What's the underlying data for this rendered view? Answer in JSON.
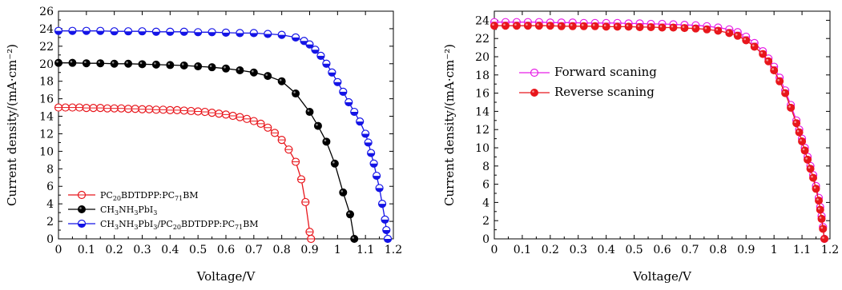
{
  "chart_data": [
    {
      "type": "line",
      "xlabel": "Voltage/V",
      "ylabel": "Current density/(mA·cm⁻²)",
      "xlim": [
        0,
        1.2
      ],
      "ylim": [
        0,
        26
      ],
      "xticks": [
        0,
        0.1,
        0.2,
        0.3,
        0.4,
        0.5,
        0.6,
        0.7,
        0.8,
        0.9,
        1.0,
        1.1,
        1.2
      ],
      "yticks": [
        0,
        2,
        4,
        6,
        8,
        10,
        12,
        14,
        16,
        18,
        20,
        22,
        24,
        26
      ],
      "grid": false,
      "legend_position": "bottom-left",
      "series": [
        {
          "name_parts": [
            [
              "PC",
              ""
            ],
            [
              "20",
              "sub"
            ],
            [
              "BDTDPP:PC",
              ""
            ],
            [
              "71",
              "sub"
            ],
            [
              "BM",
              ""
            ]
          ],
          "color": "#e8161c",
          "marker": "open-circle",
          "x": [
            0,
            0.025,
            0.05,
            0.075,
            0.1,
            0.125,
            0.15,
            0.175,
            0.2,
            0.225,
            0.25,
            0.275,
            0.3,
            0.325,
            0.35,
            0.375,
            0.4,
            0.425,
            0.45,
            0.475,
            0.5,
            0.525,
            0.55,
            0.575,
            0.6,
            0.625,
            0.65,
            0.675,
            0.7,
            0.725,
            0.75,
            0.775,
            0.8,
            0.825,
            0.85,
            0.87,
            0.885,
            0.9,
            0.905
          ],
          "y": [
            15.0,
            15.0,
            15.0,
            15.0,
            14.95,
            14.95,
            14.95,
            14.9,
            14.9,
            14.9,
            14.85,
            14.85,
            14.8,
            14.8,
            14.75,
            14.75,
            14.7,
            14.7,
            14.65,
            14.6,
            14.55,
            14.5,
            14.4,
            14.3,
            14.2,
            14.05,
            13.9,
            13.7,
            13.45,
            13.15,
            12.7,
            12.1,
            11.3,
            10.2,
            8.8,
            6.8,
            4.2,
            0.8,
            0
          ]
        },
        {
          "name_parts": [
            [
              "CH",
              ""
            ],
            [
              "3",
              "sub"
            ],
            [
              "NH",
              ""
            ],
            [
              "3",
              "sub"
            ],
            [
              "PbI",
              ""
            ],
            [
              "3",
              "sub"
            ]
          ],
          "color": "#000000",
          "marker": "filled-circle",
          "x": [
            0,
            0.05,
            0.1,
            0.15,
            0.2,
            0.25,
            0.3,
            0.35,
            0.4,
            0.45,
            0.5,
            0.55,
            0.6,
            0.65,
            0.7,
            0.75,
            0.8,
            0.85,
            0.9,
            0.93,
            0.96,
            0.99,
            1.02,
            1.045,
            1.06
          ],
          "y": [
            20.1,
            20.1,
            20.05,
            20.05,
            20.0,
            20.0,
            19.95,
            19.9,
            19.85,
            19.8,
            19.7,
            19.6,
            19.45,
            19.25,
            19.0,
            18.6,
            18.0,
            16.6,
            14.5,
            12.9,
            11.1,
            8.6,
            5.3,
            2.8,
            0
          ]
        },
        {
          "name_parts": [
            [
              "CH",
              ""
            ],
            [
              "3",
              "sub"
            ],
            [
              "NH",
              ""
            ],
            [
              "3",
              "sub"
            ],
            [
              "PbI",
              ""
            ],
            [
              "3",
              "sub"
            ],
            [
              "/PC",
              ""
            ],
            [
              "20",
              "sub"
            ],
            [
              "BDTDPP:PC",
              ""
            ],
            [
              "71",
              "sub"
            ],
            [
              "BM",
              ""
            ]
          ],
          "color": "#1414e6",
          "marker": "half-filled-circle",
          "x": [
            0,
            0.05,
            0.1,
            0.15,
            0.2,
            0.25,
            0.3,
            0.35,
            0.4,
            0.45,
            0.5,
            0.55,
            0.6,
            0.65,
            0.7,
            0.75,
            0.8,
            0.85,
            0.88,
            0.9,
            0.92,
            0.94,
            0.96,
            0.98,
            1.0,
            1.02,
            1.04,
            1.06,
            1.08,
            1.1,
            1.11,
            1.12,
            1.13,
            1.14,
            1.15,
            1.16,
            1.17,
            1.175,
            1.18
          ],
          "y": [
            23.75,
            23.75,
            23.75,
            23.75,
            23.7,
            23.7,
            23.7,
            23.65,
            23.65,
            23.65,
            23.6,
            23.6,
            23.55,
            23.5,
            23.5,
            23.4,
            23.3,
            23.0,
            22.6,
            22.2,
            21.6,
            20.9,
            20.0,
            19.0,
            17.9,
            16.8,
            15.6,
            14.5,
            13.4,
            12.0,
            11.0,
            9.8,
            8.6,
            7.2,
            5.8,
            4.0,
            2.2,
            1.0,
            0
          ]
        }
      ]
    },
    {
      "type": "line",
      "xlabel": "Voltage/V",
      "ylabel": "Current density/(mA·cm⁻²)",
      "xlim": [
        0,
        1.2
      ],
      "ylim": [
        0,
        25
      ],
      "xticks": [
        0,
        0.1,
        0.2,
        0.3,
        0.4,
        0.5,
        0.6,
        0.7,
        0.8,
        0.9,
        1.0,
        1.1,
        1.2
      ],
      "yticks": [
        0,
        2,
        4,
        6,
        8,
        10,
        12,
        14,
        16,
        18,
        20,
        22,
        24
      ],
      "grid": false,
      "legend_position": "upper-left",
      "series": [
        {
          "name_parts": [
            [
              "Forward scaning",
              ""
            ]
          ],
          "color": "#e61ee6",
          "marker": "open-circle",
          "x": [
            0,
            0.04,
            0.08,
            0.12,
            0.16,
            0.2,
            0.24,
            0.28,
            0.32,
            0.36,
            0.4,
            0.44,
            0.48,
            0.52,
            0.56,
            0.6,
            0.64,
            0.68,
            0.72,
            0.76,
            0.8,
            0.84,
            0.87,
            0.9,
            0.93,
            0.96,
            0.98,
            1.0,
            1.02,
            1.04,
            1.06,
            1.08,
            1.09,
            1.1,
            1.11,
            1.12,
            1.13,
            1.14,
            1.15,
            1.16,
            1.165,
            1.17,
            1.175,
            1.18
          ],
          "y": [
            23.8,
            23.8,
            23.8,
            23.8,
            23.8,
            23.75,
            23.75,
            23.75,
            23.7,
            23.7,
            23.7,
            23.7,
            23.65,
            23.65,
            23.6,
            23.6,
            23.55,
            23.5,
            23.45,
            23.35,
            23.2,
            23.0,
            22.7,
            22.2,
            21.5,
            20.6,
            19.8,
            18.9,
            17.7,
            16.3,
            14.7,
            13.0,
            12.0,
            11.0,
            10.0,
            9.0,
            8.0,
            7.0,
            5.8,
            4.5,
            3.5,
            2.5,
            1.3,
            0
          ]
        },
        {
          "name_parts": [
            [
              "Reverse scaning",
              ""
            ]
          ],
          "color": "#e8161c",
          "marker": "filled-circle",
          "x": [
            0,
            0.04,
            0.08,
            0.12,
            0.16,
            0.2,
            0.24,
            0.28,
            0.32,
            0.36,
            0.4,
            0.44,
            0.48,
            0.52,
            0.56,
            0.6,
            0.64,
            0.68,
            0.72,
            0.76,
            0.8,
            0.84,
            0.87,
            0.9,
            0.93,
            0.96,
            0.98,
            1.0,
            1.02,
            1.04,
            1.06,
            1.08,
            1.09,
            1.1,
            1.11,
            1.12,
            1.13,
            1.14,
            1.15,
            1.16,
            1.165,
            1.17,
            1.175,
            1.18
          ],
          "y": [
            23.4,
            23.4,
            23.4,
            23.4,
            23.4,
            23.4,
            23.35,
            23.35,
            23.35,
            23.35,
            23.3,
            23.3,
            23.3,
            23.25,
            23.25,
            23.2,
            23.2,
            23.15,
            23.1,
            23.0,
            22.85,
            22.6,
            22.3,
            21.8,
            21.1,
            20.3,
            19.5,
            18.5,
            17.3,
            16.0,
            14.4,
            12.7,
            11.7,
            10.7,
            9.7,
            8.7,
            7.7,
            6.7,
            5.5,
            4.2,
            3.2,
            2.2,
            1.1,
            0
          ]
        }
      ]
    }
  ]
}
